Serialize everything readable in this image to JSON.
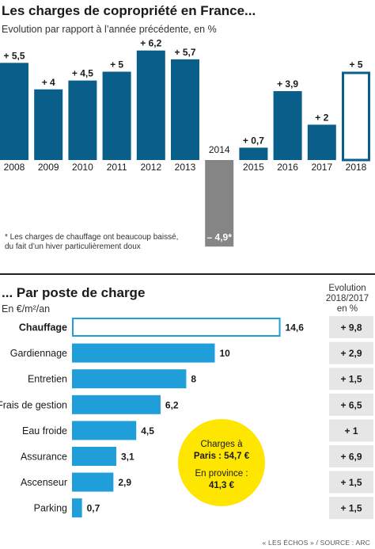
{
  "title": "Les charges de copropriété en France...",
  "subtitle": "Evolution par rapport à l’année précédente, en %",
  "note": [
    "* Les charges de chauffage ont beaucoup baissé,",
    "du fait d’un hiver particulièrement doux"
  ],
  "section2_title": "... Par poste de charge",
  "section2_unit": "En €/m²/an",
  "evolution_header": [
    "Evolution",
    "2018/2017",
    "en %"
  ],
  "callout": [
    "Charges à",
    "Paris : 54,7 €",
    "En province :",
    "41,3 €"
  ],
  "source": "« LES ÉCHOS » / SOURCE : ARC",
  "colors": {
    "bar": "#0a5f8a",
    "negative": "#858585",
    "highlight_outline": "#0a5f8a",
    "hbar": "#1f9ed9",
    "hbar_outline": "#1f9ed9",
    "callout": "#ffe600",
    "evol_bg": "#e6e6e6"
  },
  "chart_data": [
    {
      "type": "bar",
      "title": "Les charges de copropriété en France...",
      "subtitle": "Evolution par rapport à l’année précédente, en %",
      "categories": [
        "2008",
        "2009",
        "2010",
        "2011",
        "2012",
        "2013",
        "2014",
        "2015",
        "2016",
        "2017",
        "2018"
      ],
      "values": [
        5.5,
        4,
        4.5,
        5,
        6.2,
        5.7,
        -4.9,
        0.7,
        3.9,
        2,
        5
      ],
      "labels": [
        "+ 5,5",
        "+ 4",
        "+ 4,5",
        "+ 5",
        "+ 6,2",
        "+ 5,7",
        "– 4,9*",
        "+ 0,7",
        "+ 3,9",
        "+ 2",
        "+ 5"
      ],
      "styles": [
        "solid",
        "solid",
        "solid",
        "solid",
        "solid",
        "solid",
        "negative",
        "solid",
        "solid",
        "solid",
        "outline"
      ],
      "grid": false
    },
    {
      "type": "bar",
      "orientation": "horizontal",
      "title": "... Par poste de charge",
      "ylabel": "En €/m²/an",
      "categories": [
        "Chauffage",
        "Gardiennage",
        "Entretien",
        "Frais de gestion",
        "Eau froide",
        "Assurance",
        "Ascenseur",
        "Parking"
      ],
      "values": [
        14.6,
        10,
        8,
        6.2,
        4.5,
        3.1,
        2.9,
        0.7
      ],
      "value_labels": [
        "14,6",
        "10",
        "8",
        "6,2",
        "4,5",
        "3,1",
        "2,9",
        "0,7"
      ],
      "evolution_2018_2017": [
        "+ 9,8",
        "+ 2,9",
        "+ 1,5",
        "+ 6,5",
        "+ 1",
        "+ 6,9",
        "+ 1,5",
        "+ 1,5"
      ],
      "bold_first": true,
      "grid": false
    }
  ]
}
